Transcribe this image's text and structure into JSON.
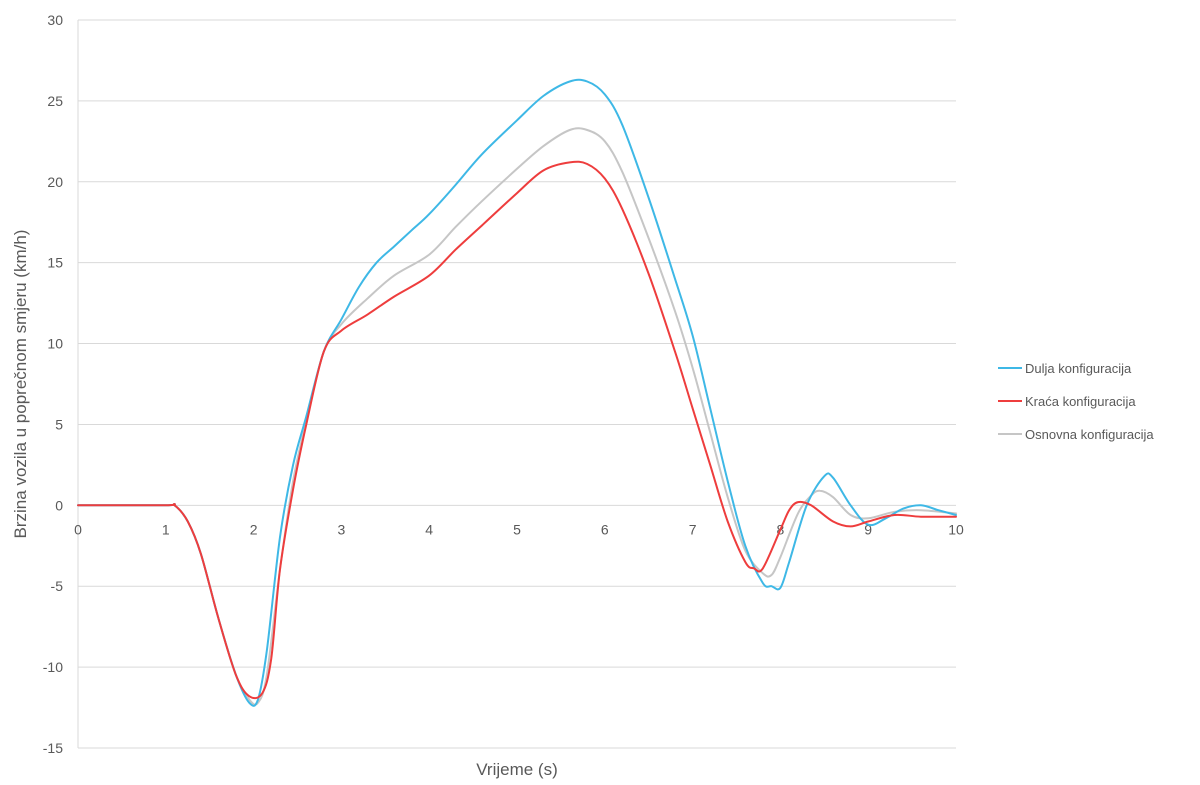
{
  "chart_data": {
    "type": "line",
    "title": "",
    "xlabel": "Vrijeme (s)",
    "ylabel": "Brzina vozila u poprečnom smjeru (km/h)",
    "xlim": [
      0,
      10
    ],
    "ylim": [
      -15,
      30
    ],
    "x_ticks": [
      0,
      1,
      2,
      3,
      4,
      5,
      6,
      7,
      8,
      9,
      10
    ],
    "y_ticks": [
      -15,
      -10,
      -5,
      0,
      5,
      10,
      15,
      20,
      25,
      30
    ],
    "grid": "horizontal",
    "legend_position": "right",
    "series": [
      {
        "name": "Dulja konfiguracija",
        "color": "#3EB8E6",
        "points": [
          [
            0,
            0
          ],
          [
            1,
            0
          ],
          [
            1.1,
            0
          ],
          [
            1.25,
            -1
          ],
          [
            1.4,
            -3
          ],
          [
            1.6,
            -7
          ],
          [
            1.8,
            -10.5
          ],
          [
            1.95,
            -12.2
          ],
          [
            2.05,
            -12
          ],
          [
            2.15,
            -9
          ],
          [
            2.3,
            -2
          ],
          [
            2.45,
            2.5
          ],
          [
            2.6,
            5.5
          ],
          [
            2.8,
            9.5
          ],
          [
            3,
            11.5
          ],
          [
            3.2,
            13.5
          ],
          [
            3.4,
            15
          ],
          [
            3.6,
            16
          ],
          [
            3.8,
            17
          ],
          [
            4,
            18
          ],
          [
            4.3,
            19.8
          ],
          [
            4.6,
            21.7
          ],
          [
            5,
            23.8
          ],
          [
            5.3,
            25.3
          ],
          [
            5.6,
            26.2
          ],
          [
            5.8,
            26.2
          ],
          [
            6,
            25.4
          ],
          [
            6.2,
            23.5
          ],
          [
            6.5,
            19
          ],
          [
            6.8,
            14
          ],
          [
            7,
            10.5
          ],
          [
            7.2,
            6
          ],
          [
            7.4,
            1.5
          ],
          [
            7.6,
            -2.5
          ],
          [
            7.8,
            -4.8
          ],
          [
            7.9,
            -5.0
          ],
          [
            8.0,
            -5.1
          ],
          [
            8.1,
            -3.5
          ],
          [
            8.3,
            0
          ],
          [
            8.5,
            1.8
          ],
          [
            8.6,
            1.7
          ],
          [
            8.8,
            0
          ],
          [
            9,
            -1.2
          ],
          [
            9.2,
            -0.8
          ],
          [
            9.4,
            -0.2
          ],
          [
            9.6,
            0
          ],
          [
            9.8,
            -0.3
          ],
          [
            10,
            -0.6
          ]
        ]
      },
      {
        "name": "Kraća konfiguracija",
        "color": "#EE3D3D",
        "points": [
          [
            0,
            0
          ],
          [
            1,
            0
          ],
          [
            1.1,
            0
          ],
          [
            1.25,
            -1
          ],
          [
            1.4,
            -3
          ],
          [
            1.6,
            -7
          ],
          [
            1.8,
            -10.5
          ],
          [
            1.95,
            -11.8
          ],
          [
            2.1,
            -11.6
          ],
          [
            2.2,
            -9.5
          ],
          [
            2.3,
            -4
          ],
          [
            2.45,
            1
          ],
          [
            2.6,
            5
          ],
          [
            2.8,
            9.5
          ],
          [
            3,
            10.8
          ],
          [
            3.3,
            11.8
          ],
          [
            3.6,
            12.9
          ],
          [
            4,
            14.2
          ],
          [
            4.3,
            15.8
          ],
          [
            4.6,
            17.3
          ],
          [
            5,
            19.3
          ],
          [
            5.3,
            20.7
          ],
          [
            5.6,
            21.2
          ],
          [
            5.8,
            21.1
          ],
          [
            6,
            20.2
          ],
          [
            6.2,
            18.3
          ],
          [
            6.5,
            14.3
          ],
          [
            6.8,
            9.5
          ],
          [
            7,
            6
          ],
          [
            7.2,
            2.5
          ],
          [
            7.4,
            -1
          ],
          [
            7.6,
            -3.5
          ],
          [
            7.7,
            -3.9
          ],
          [
            7.8,
            -3.9
          ],
          [
            8,
            -1.5
          ],
          [
            8.1,
            -0.3
          ],
          [
            8.2,
            0.2
          ],
          [
            8.35,
            0
          ],
          [
            8.6,
            -1.0
          ],
          [
            8.8,
            -1.3
          ],
          [
            9,
            -1
          ],
          [
            9.3,
            -0.6
          ],
          [
            9.6,
            -0.7
          ],
          [
            10,
            -0.7
          ]
        ]
      },
      {
        "name": "Osnovna konfiguracija",
        "color": "#C6C6C6",
        "points": [
          [
            0,
            0
          ],
          [
            1,
            0
          ],
          [
            1.1,
            0
          ],
          [
            1.25,
            -1
          ],
          [
            1.4,
            -3
          ],
          [
            1.6,
            -7
          ],
          [
            1.8,
            -10.5
          ],
          [
            1.95,
            -12.0
          ],
          [
            2.05,
            -12.2
          ],
          [
            2.15,
            -10.5
          ],
          [
            2.3,
            -4
          ],
          [
            2.45,
            1.5
          ],
          [
            2.6,
            5.2
          ],
          [
            2.8,
            9.5
          ],
          [
            3,
            11.2
          ],
          [
            3.3,
            12.8
          ],
          [
            3.6,
            14.2
          ],
          [
            4,
            15.5
          ],
          [
            4.3,
            17.2
          ],
          [
            4.6,
            18.8
          ],
          [
            5,
            20.8
          ],
          [
            5.3,
            22.2
          ],
          [
            5.6,
            23.2
          ],
          [
            5.8,
            23.2
          ],
          [
            6,
            22.5
          ],
          [
            6.2,
            20.6
          ],
          [
            6.5,
            16.5
          ],
          [
            6.8,
            12
          ],
          [
            7,
            8.5
          ],
          [
            7.2,
            4.5
          ],
          [
            7.4,
            0.5
          ],
          [
            7.6,
            -2.8
          ],
          [
            7.8,
            -4.2
          ],
          [
            7.9,
            -4.3
          ],
          [
            8,
            -3.2
          ],
          [
            8.2,
            -0.5
          ],
          [
            8.35,
            0.6
          ],
          [
            8.45,
            0.9
          ],
          [
            8.6,
            0.5
          ],
          [
            8.8,
            -0.6
          ],
          [
            9,
            -0.8
          ],
          [
            9.3,
            -0.4
          ],
          [
            9.6,
            -0.3
          ],
          [
            10,
            -0.5
          ]
        ]
      }
    ]
  }
}
